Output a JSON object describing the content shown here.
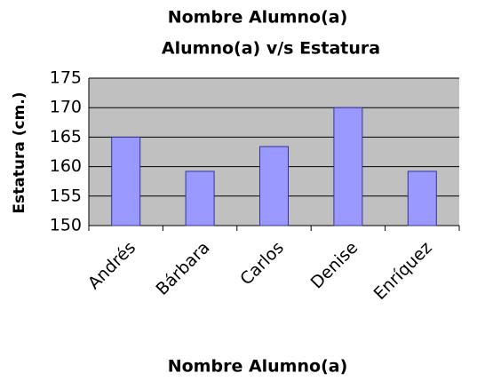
{
  "chart_data": {
    "type": "bar",
    "title": "Nombre Alumno(a)",
    "subtitle": "Alumno(a) v/s Estatura",
    "x_label": "Nombre Alumno(a)",
    "y_label": "Estatura (cm.)",
    "categories": [
      "Andrés",
      "Bárbara",
      "Carlos",
      "Denise",
      "Enríquez"
    ],
    "values": [
      165,
      159.2,
      163.4,
      170,
      159.2
    ],
    "color": "#9999ff",
    "ylim": [
      150,
      175
    ],
    "yticks": [
      150,
      155,
      160,
      165,
      170,
      175
    ],
    "grid": true
  }
}
